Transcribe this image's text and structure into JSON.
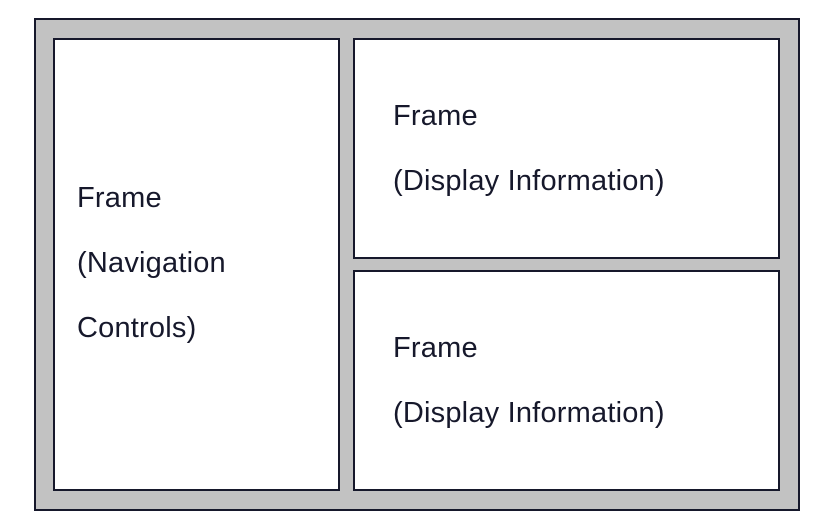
{
  "frames": {
    "navigation": {
      "lines": [
        "Frame",
        "(Navigation",
        "Controls)"
      ]
    },
    "display_top": {
      "lines": [
        "Frame",
        "(Display Information)"
      ]
    },
    "display_bottom": {
      "lines": [
        "Frame",
        "(Display Information)"
      ]
    }
  },
  "colors": {
    "outer_background": "#c2c2c2",
    "border": "#16182b",
    "frame_background": "#ffffff",
    "text": "#16182b"
  }
}
